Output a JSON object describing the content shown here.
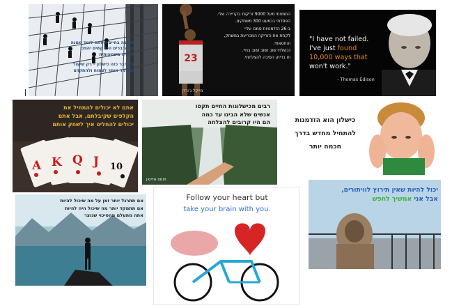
{
  "card1": {
    "lines": [
      "תקופה בחיים שאתה לומד ממנה",
      "גם הדברים הכי קשים יהפכו",
      "לחוויה משמעותית",
      "אין דבר כזה כישלון - רק שיעור",
      "שמלמד אותך לצמוח ולהתקדם"
    ]
  },
  "card2": {
    "lines": [
      "החמצתי מעל 9000 זריקות בקריירה שלי.",
      "הפסדתי בכמעט 300 משחקים.",
      "ב-26 הזדמנויות סמכו עליי",
      "לקחת את הזריקה המכריעת במשחק,",
      "והחטאתי.",
      "נכשלתי שוב ושוב ושוב בחיי.",
      "וזו בדיוק הסיבה להצלחתי."
    ],
    "jersey": "23",
    "author": "מייקל ג'ורדן"
  },
  "card3": {
    "line1": "\"I have not failed.",
    "line2_pre": "I've just ",
    "line2_hl": "found",
    "line3": "10,000 ways that",
    "line4": "won't work.\"",
    "author": "- Thomas Edison"
  },
  "card4": {
    "lines": [
      "אתם לא יכולים להתחיל את",
      "הקלפים שקיבלתם, אבל אתם",
      "יכולים להחליט איך לשחק אותם"
    ],
    "cards": [
      "A",
      "K",
      "Q",
      "J",
      "10"
    ]
  },
  "card5": {
    "lines": [
      "רבים מכישלונות החיים תקפו",
      "אנשים שלא הבינו עד כמה",
      "הם היו קרובים להצלחה"
    ],
    "author": "תומס אדיסון"
  },
  "card6": {
    "lines": [
      "כישלון הוא הזדמנות",
      "להתחיל מחדש בדרך",
      "חכמה יותר"
    ]
  },
  "card7": {
    "lines": [
      "אם תתרגל יותר זמן על מה שיכול להיות",
      "אם תתמקד יותר מה שיכול היה להיות",
      "אתה מתעלם מהסיכוי שנוצר"
    ]
  },
  "card8": {
    "line1": "Follow your heart but",
    "line2": "take your brain with you."
  },
  "card9": {
    "line1": "יכול להיות שאין תירוץ לוויתורים,",
    "line2_pre": "אבל אני ",
    "line2_hl": "אמשיך לחפש"
  },
  "colors": {
    "red": "#cc2222",
    "orange": "#e08a1a",
    "blue": "#2a6fd6",
    "green_text": "#3cb43c"
  }
}
